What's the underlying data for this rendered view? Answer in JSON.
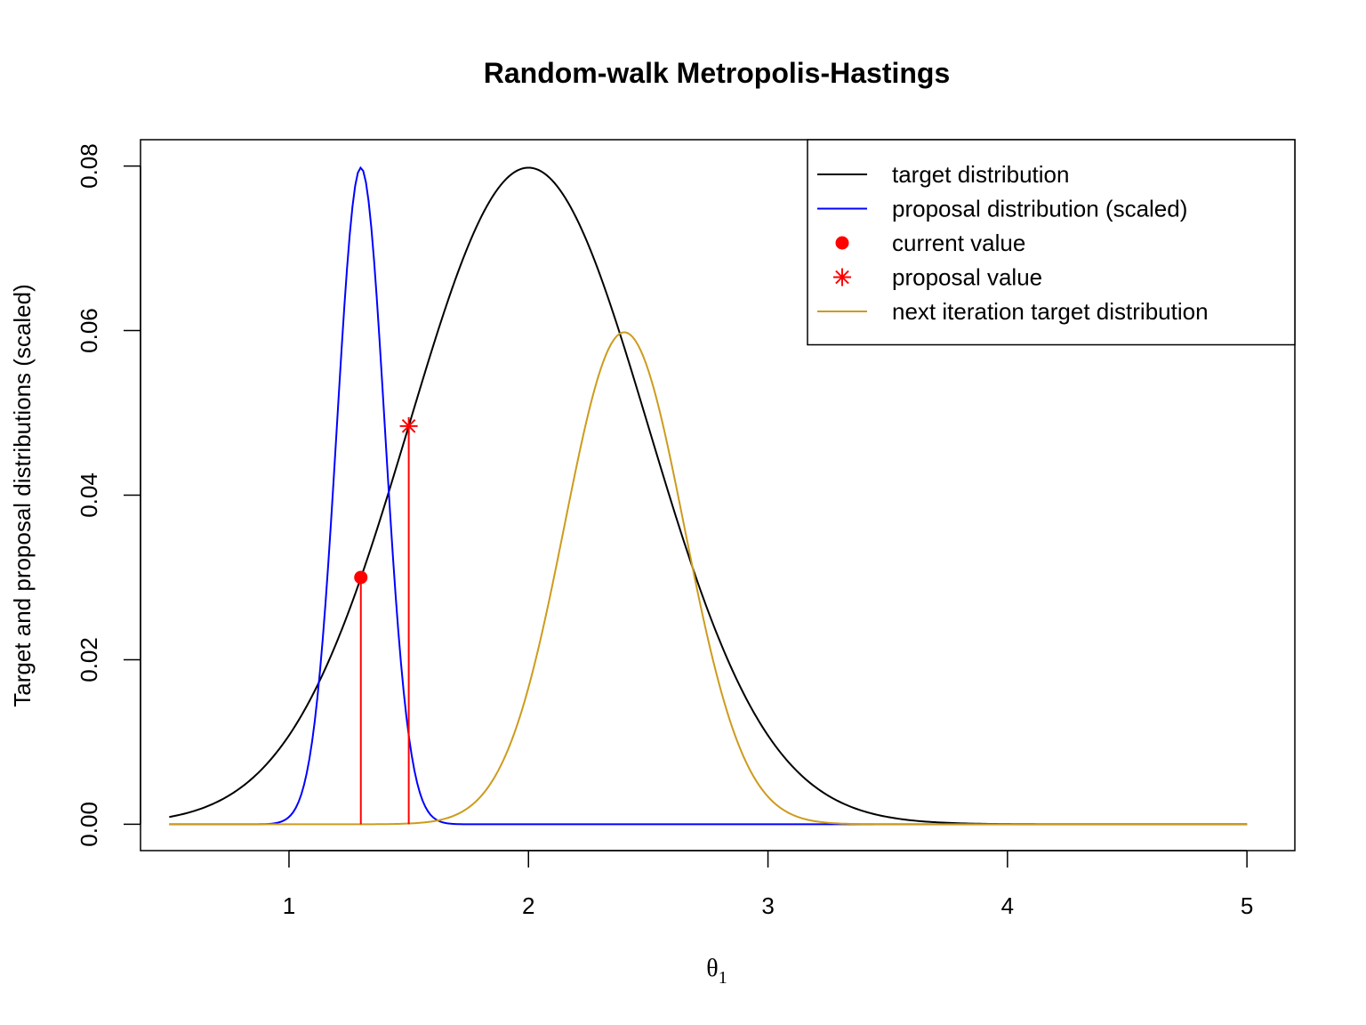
{
  "chart_data": {
    "type": "line",
    "title": "Random-walk Metropolis-Hastings",
    "xlabel_symbol": "θ",
    "xlabel_subscript": "1",
    "ylabel": "Target and proposal distributions (scaled)",
    "xlim": [
      0.38,
      5.2
    ],
    "ylim": [
      -0.0032,
      0.0832
    ],
    "xticks": [
      1,
      2,
      3,
      4,
      5
    ],
    "xtick_labels": [
      "1",
      "2",
      "3",
      "4",
      "5"
    ],
    "yticks": [
      0.0,
      0.02,
      0.04,
      0.06,
      0.08
    ],
    "ytick_labels": [
      "0.00",
      "0.02",
      "0.04",
      "0.06",
      "0.08"
    ],
    "grid": false,
    "legend_position": "top-right",
    "x_range": [
      0.5,
      5.0
    ],
    "series": [
      {
        "name": "target distribution",
        "color": "#000000",
        "kind": "normal",
        "mean": 2.0,
        "sd": 0.5,
        "peak": 0.0798
      },
      {
        "name": "proposal distribution (scaled)",
        "color": "#0000ff",
        "kind": "normal",
        "mean": 1.3,
        "sd": 0.1,
        "peak": 0.0798
      },
      {
        "name": "next iteration target distribution",
        "color": "#cd9b1d",
        "kind": "normal",
        "mean": 2.4,
        "sd": 0.25,
        "peak": 0.0598
      }
    ],
    "points": [
      {
        "name": "current value",
        "x": 1.3,
        "y": 0.03,
        "marker": "dot",
        "color": "#ff0000"
      },
      {
        "name": "proposal value",
        "x": 1.5,
        "y": 0.0484,
        "marker": "asterisk",
        "color": "#ff0000"
      }
    ],
    "legend": [
      {
        "label": "target distribution",
        "kind": "line",
        "color": "#000000"
      },
      {
        "label": "proposal distribution (scaled)",
        "kind": "line",
        "color": "#0000ff"
      },
      {
        "label": "current value",
        "kind": "dot",
        "color": "#ff0000"
      },
      {
        "label": "proposal value",
        "kind": "asterisk",
        "color": "#ff0000"
      },
      {
        "label": "next iteration target distribution",
        "kind": "line",
        "color": "#cd9b1d"
      }
    ]
  }
}
